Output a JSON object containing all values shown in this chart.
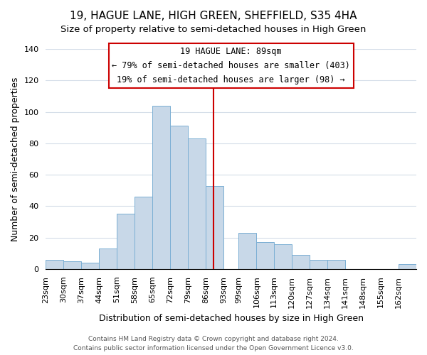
{
  "title": "19, HAGUE LANE, HIGH GREEN, SHEFFIELD, S35 4HA",
  "subtitle": "Size of property relative to semi-detached houses in High Green",
  "xlabel": "Distribution of semi-detached houses by size in High Green",
  "ylabel": "Number of semi-detached properties",
  "footer_line1": "Contains HM Land Registry data © Crown copyright and database right 2024.",
  "footer_line2": "Contains public sector information licensed under the Open Government Licence v3.0.",
  "bin_labels": [
    "23sqm",
    "30sqm",
    "37sqm",
    "44sqm",
    "51sqm",
    "58sqm",
    "65sqm",
    "72sqm",
    "79sqm",
    "86sqm",
    "93sqm",
    "99sqm",
    "106sqm",
    "113sqm",
    "120sqm",
    "127sqm",
    "134sqm",
    "141sqm",
    "148sqm",
    "155sqm",
    "162sqm"
  ],
  "bin_edges": [
    23,
    30,
    37,
    44,
    51,
    58,
    65,
    72,
    79,
    86,
    93,
    99,
    106,
    113,
    120,
    127,
    134,
    141,
    148,
    155,
    162,
    169
  ],
  "bar_heights": [
    6,
    5,
    4,
    13,
    35,
    46,
    104,
    91,
    83,
    53,
    0,
    23,
    17,
    16,
    9,
    6,
    6,
    0,
    0,
    0,
    3
  ],
  "bar_color": "#c8d8e8",
  "bar_edge_color": "#7bafd4",
  "property_size": 89,
  "vline_color": "#cc0000",
  "annotation_title": "19 HAGUE LANE: 89sqm",
  "annotation_line1": "← 79% of semi-detached houses are smaller (403)",
  "annotation_line2": "19% of semi-detached houses are larger (98) →",
  "annotation_box_edge": "#cc0000",
  "ylim": [
    0,
    140
  ],
  "yticks": [
    0,
    20,
    40,
    60,
    80,
    100,
    120,
    140
  ],
  "title_fontsize": 11,
  "subtitle_fontsize": 9.5,
  "ylabel_fontsize": 9,
  "xlabel_fontsize": 9,
  "tick_fontsize": 8,
  "annotation_fontsize": 8.5,
  "footer_fontsize": 6.5
}
